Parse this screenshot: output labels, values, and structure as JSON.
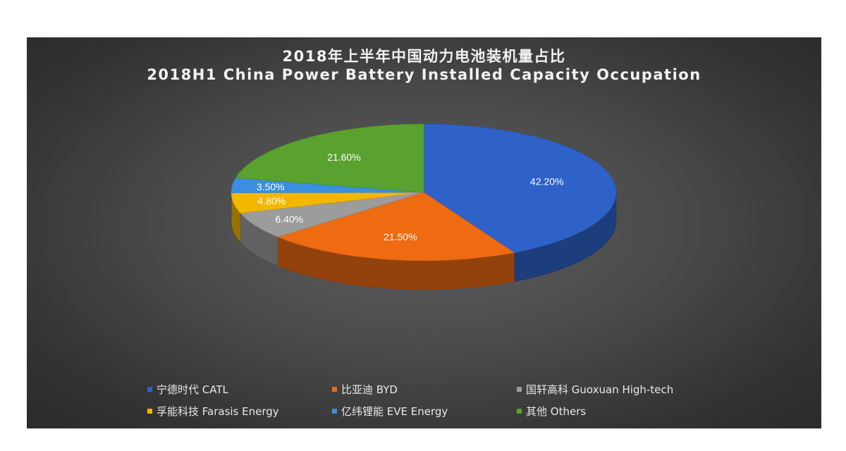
{
  "chart_data": {
    "type": "pie",
    "title": "2018年上半年中国动力电池装机量占比",
    "subtitle": "2018H1 China Power Battery Installed Capacity Occupation",
    "legend_position": "bottom",
    "slices": [
      {
        "name": "宁德时代 CATL",
        "value": 42.2,
        "label": "42.20%",
        "color": "#2e62c8"
      },
      {
        "name": "比亚迪 BYD",
        "value": 21.5,
        "label": "21.50%",
        "color": "#ee6b12"
      },
      {
        "name": "国轩高科 Guoxuan High-tech",
        "value": 6.4,
        "label": "6.40%",
        "color": "#9c9c9c"
      },
      {
        "name": "孚能科技 Farasis Energy",
        "value": 4.8,
        "label": "4.80%",
        "color": "#f2b800"
      },
      {
        "name": "亿纬锂能 EVE Energy",
        "value": 3.5,
        "label": "3.50%",
        "color": "#3a8fe0"
      },
      {
        "name": "其他 Others",
        "value": 21.6,
        "label": "21.60%",
        "color": "#5aa22f"
      }
    ]
  }
}
